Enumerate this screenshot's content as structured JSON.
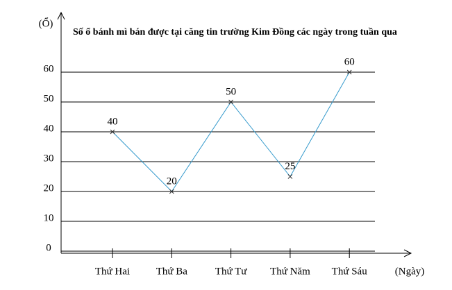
{
  "chart_data": {
    "type": "line",
    "title": "Số ổ bánh mì bán được tại căng tin trường Kim Đồng các ngày trong tuần qua",
    "y_label": "(Ổ)",
    "x_label": "(Ngày)",
    "categories": [
      "Thứ Hai",
      "Thứ Ba",
      "Thứ Tư",
      "Thứ Năm",
      "Thứ Sáu"
    ],
    "values": [
      40,
      20,
      50,
      25,
      60
    ],
    "color": "#3399cc",
    "ylim": [
      0,
      80
    ],
    "yticks": [
      0,
      10,
      20,
      30,
      40,
      50,
      60
    ],
    "grid": true
  }
}
